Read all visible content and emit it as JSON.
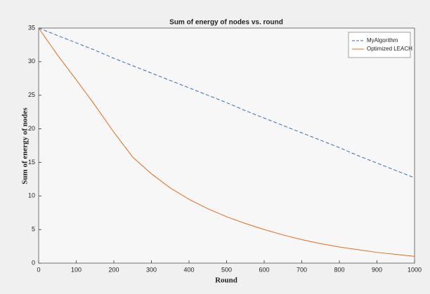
{
  "chart_data": {
    "type": "line",
    "title": "Sum of energy of nodes vs. round",
    "x_label": "Round",
    "y_label": "Sum of energy of nodes",
    "x": [
      0,
      50,
      100,
      150,
      200,
      250,
      300,
      350,
      400,
      450,
      500,
      550,
      600,
      650,
      700,
      750,
      800,
      850,
      900,
      950,
      1000
    ],
    "series": [
      {
        "name": "MyAlgorithm",
        "color": "#2f6fb0",
        "linestyle": "dashed",
        "values": [
          35,
          33.9,
          32.8,
          31.7,
          30.5,
          29.4,
          28.3,
          27.2,
          26.1,
          25.0,
          23.9,
          22.7,
          21.6,
          20.5,
          19.4,
          18.3,
          17.2,
          16.0,
          14.9,
          13.8,
          12.7
        ]
      },
      {
        "name": "Optimized LEACH",
        "color": "#e06c1f",
        "linestyle": "solid",
        "values": [
          35,
          31,
          27.3,
          23.5,
          19.5,
          15.8,
          13.3,
          11.2,
          9.5,
          8.1,
          6.9,
          5.9,
          5.0,
          4.2,
          3.5,
          2.9,
          2.4,
          2.0,
          1.6,
          1.3,
          1.0
        ]
      }
    ],
    "xlim": [
      0,
      1000
    ],
    "xticks": [
      0,
      100,
      200,
      300,
      400,
      500,
      600,
      700,
      800,
      900,
      1000
    ],
    "ylim": [
      0,
      35
    ],
    "yticks": [
      0,
      5,
      10,
      15,
      20,
      25,
      30,
      35
    ],
    "grid": false,
    "legend": "northeast"
  }
}
